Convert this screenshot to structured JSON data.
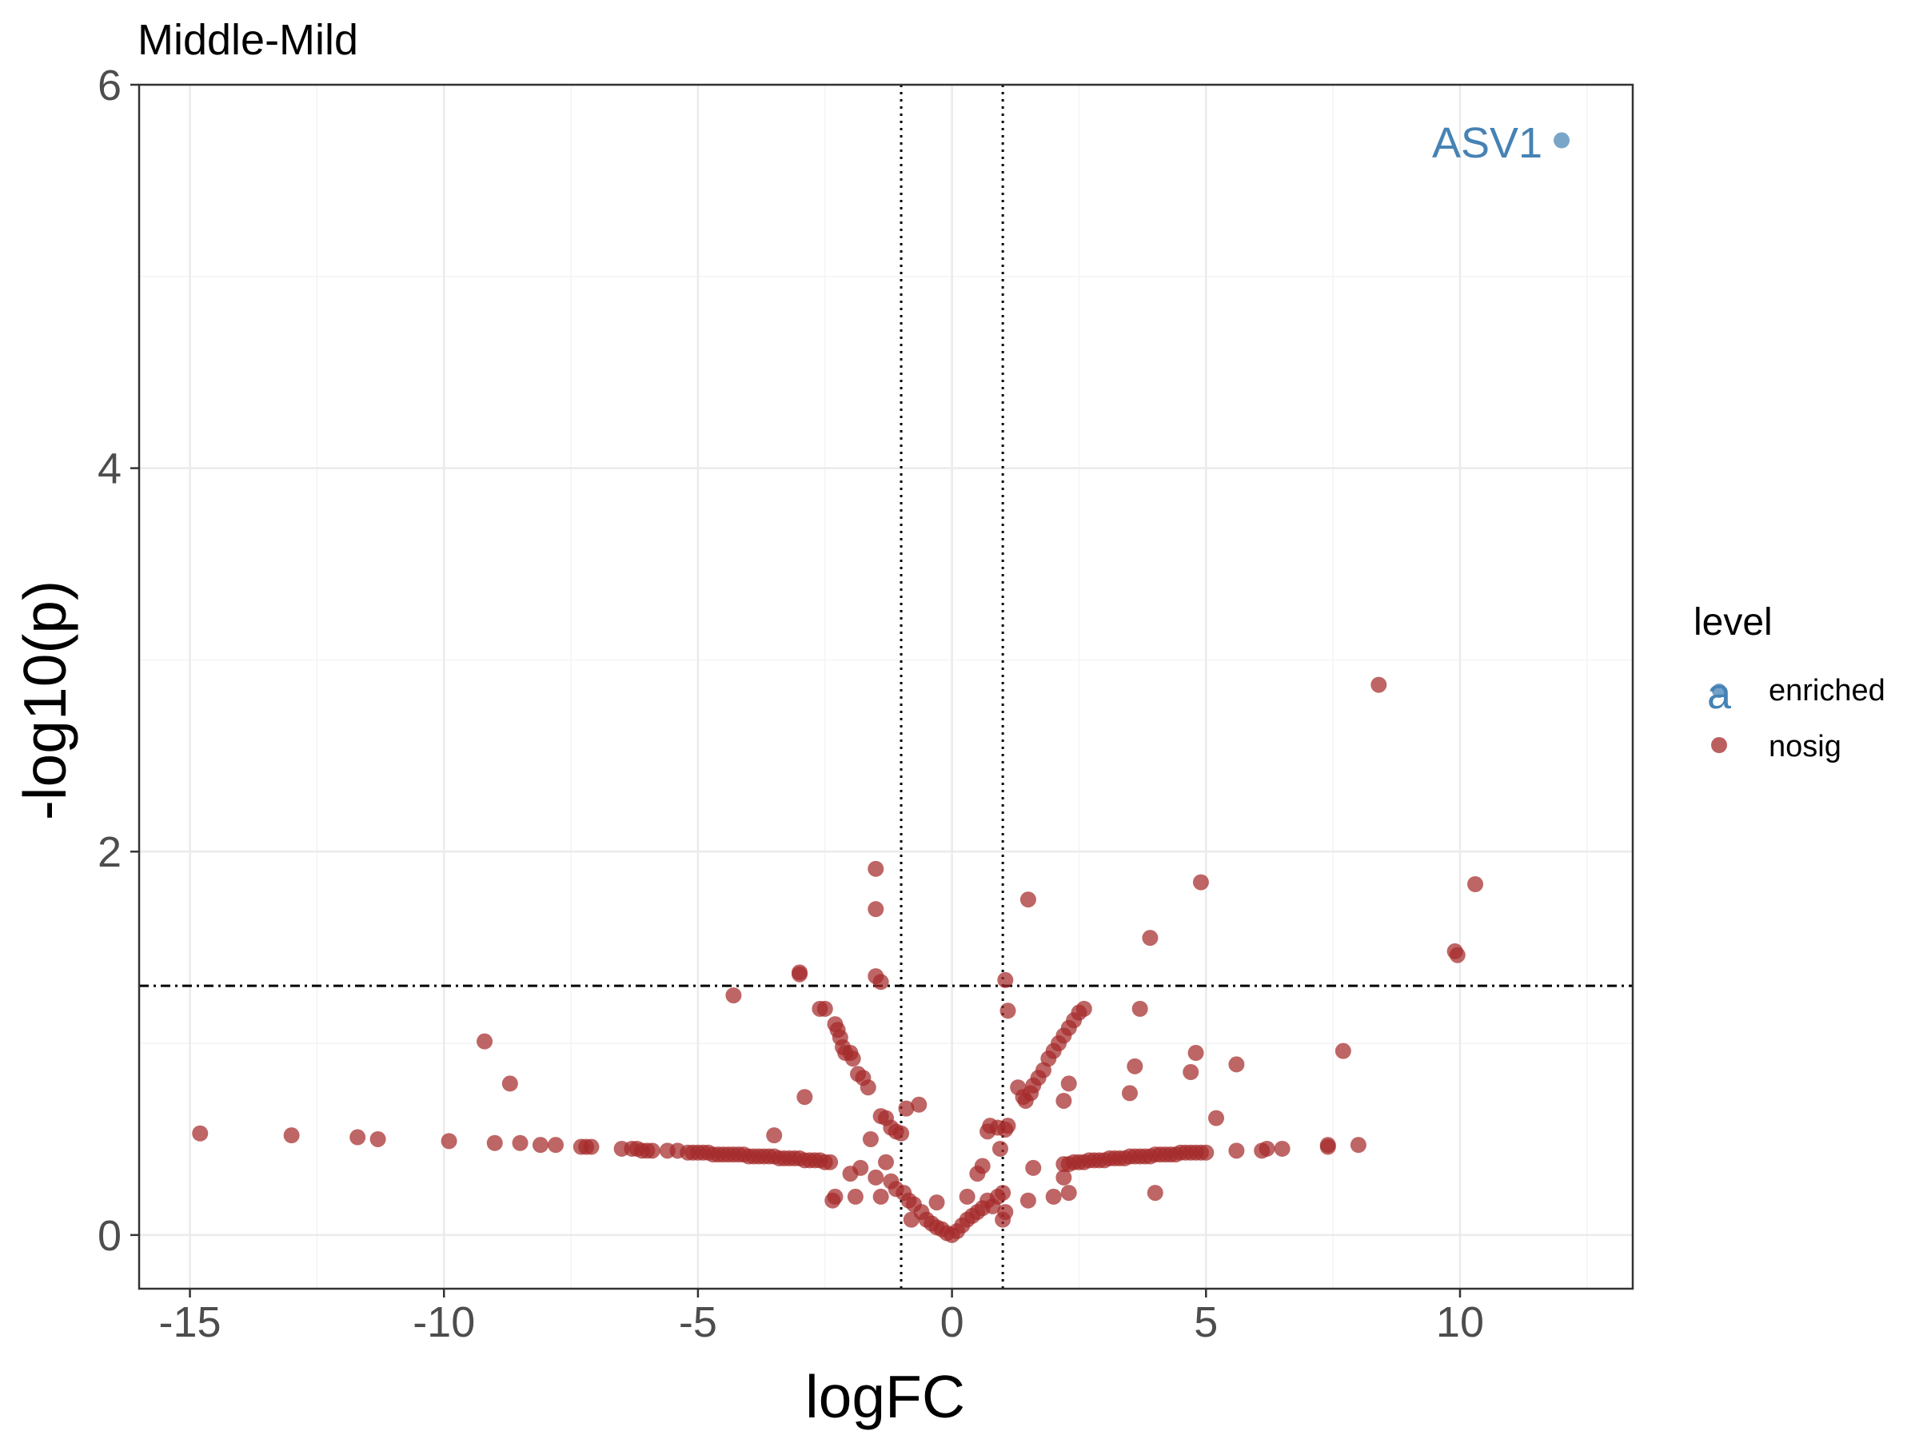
{
  "chart_data": {
    "type": "scatter",
    "title": "Middle-Mild",
    "xlabel": "logFC",
    "ylabel": "-log10(p)",
    "xlim": [
      -16,
      13.4
    ],
    "ylim": [
      -0.28,
      6
    ],
    "x_ticks": [
      -15,
      -10,
      -5,
      0,
      5,
      10
    ],
    "y_ticks": [
      0,
      2,
      4,
      6
    ],
    "grid": true,
    "theme": "bw",
    "reference_lines": {
      "vertical_dotted": [
        -1,
        1
      ],
      "horizontal_dotdash": 1.3
    },
    "legend": {
      "title": "level",
      "position": "right",
      "entries": [
        {
          "label": "enriched",
          "color": "#4682B4",
          "glyph": "a"
        },
        {
          "label": "nosig",
          "color": "#A52A2A"
        }
      ]
    },
    "annotations": [
      {
        "text": "ASV1",
        "x": 12,
        "y": 5.7,
        "color": "#4682B4"
      }
    ],
    "series": [
      {
        "name": "enriched",
        "color": "#4682B4",
        "points": [
          [
            12.0,
            5.71
          ]
        ]
      },
      {
        "name": "nosig",
        "color": "#A52A2A",
        "points": [
          [
            -14.8,
            0.53
          ],
          [
            -13.0,
            0.52
          ],
          [
            -11.7,
            0.51
          ],
          [
            -11.3,
            0.5
          ],
          [
            -9.9,
            0.49
          ],
          [
            -9.2,
            1.01
          ],
          [
            -9.0,
            0.48
          ],
          [
            -8.7,
            0.79
          ],
          [
            -8.5,
            0.48
          ],
          [
            -8.1,
            0.47
          ],
          [
            -7.8,
            0.47
          ],
          [
            -7.3,
            0.46
          ],
          [
            -7.2,
            0.46
          ],
          [
            -7.1,
            0.46
          ],
          [
            -6.5,
            0.45
          ],
          [
            -6.3,
            0.45
          ],
          [
            -6.2,
            0.45
          ],
          [
            -6.1,
            0.44
          ],
          [
            -6.0,
            0.44
          ],
          [
            -5.9,
            0.44
          ],
          [
            -5.6,
            0.44
          ],
          [
            -5.4,
            0.44
          ],
          [
            -5.2,
            0.43
          ],
          [
            -5.1,
            0.43
          ],
          [
            -5.0,
            0.43
          ],
          [
            -4.9,
            0.43
          ],
          [
            -4.8,
            0.43
          ],
          [
            -4.7,
            0.42
          ],
          [
            -4.6,
            0.42
          ],
          [
            -4.5,
            0.42
          ],
          [
            -4.4,
            0.42
          ],
          [
            -4.3,
            1.25
          ],
          [
            -4.3,
            0.42
          ],
          [
            -4.2,
            0.42
          ],
          [
            -4.1,
            0.42
          ],
          [
            -4.0,
            0.41
          ],
          [
            -3.9,
            0.41
          ],
          [
            -3.8,
            0.41
          ],
          [
            -3.7,
            0.41
          ],
          [
            -3.6,
            0.41
          ],
          [
            -3.5,
            0.41
          ],
          [
            -3.4,
            0.4
          ],
          [
            -3.3,
            0.4
          ],
          [
            -3.2,
            0.4
          ],
          [
            -3.1,
            0.4
          ],
          [
            -3.0,
            0.4
          ],
          [
            -2.9,
            0.39
          ],
          [
            -2.8,
            0.39
          ],
          [
            -2.7,
            0.39
          ],
          [
            -2.6,
            0.39
          ],
          [
            -2.5,
            0.38
          ],
          [
            -2.4,
            0.38
          ],
          [
            -3.5,
            0.52
          ],
          [
            -2.9,
            0.72
          ],
          [
            -3.0,
            1.37
          ],
          [
            -3.0,
            1.36
          ],
          [
            -2.6,
            1.18
          ],
          [
            -2.5,
            1.18
          ],
          [
            -2.3,
            1.1
          ],
          [
            -2.25,
            1.07
          ],
          [
            -2.2,
            1.03
          ],
          [
            -2.15,
            0.98
          ],
          [
            -2.1,
            0.95
          ],
          [
            -2.0,
            0.95
          ],
          [
            -1.95,
            0.92
          ],
          [
            -1.85,
            0.84
          ],
          [
            -1.75,
            0.82
          ],
          [
            -1.65,
            0.77
          ],
          [
            -1.4,
            0.62
          ],
          [
            -1.3,
            0.61
          ],
          [
            -1.2,
            0.56
          ],
          [
            -1.1,
            0.54
          ],
          [
            -1.0,
            0.53
          ],
          [
            -1.5,
            1.91
          ],
          [
            -1.5,
            1.7
          ],
          [
            -1.5,
            1.35
          ],
          [
            -1.4,
            1.32
          ],
          [
            -2.3,
            0.2
          ],
          [
            -2.35,
            0.18
          ],
          [
            -2.0,
            0.32
          ],
          [
            -1.9,
            0.2
          ],
          [
            -1.8,
            0.35
          ],
          [
            -1.6,
            0.5
          ],
          [
            -1.5,
            0.3
          ],
          [
            -1.4,
            0.2
          ],
          [
            -1.3,
            0.38
          ],
          [
            -1.2,
            0.28
          ],
          [
            -1.1,
            0.24
          ],
          [
            -0.95,
            0.22
          ],
          [
            -0.85,
            0.18
          ],
          [
            -0.75,
            0.16
          ],
          [
            -0.9,
            0.66
          ],
          [
            -0.65,
            0.68
          ],
          [
            -0.8,
            0.08
          ],
          [
            -0.6,
            0.12
          ],
          [
            -0.5,
            0.08
          ],
          [
            -0.4,
            0.06
          ],
          [
            -0.3,
            0.04
          ],
          [
            -0.2,
            0.03
          ],
          [
            -0.1,
            0.01
          ],
          [
            0.0,
            0.0
          ],
          [
            0.1,
            0.02
          ],
          [
            0.2,
            0.05
          ],
          [
            0.3,
            0.08
          ],
          [
            0.4,
            0.1
          ],
          [
            0.5,
            0.12
          ],
          [
            0.6,
            0.14
          ],
          [
            0.7,
            0.18
          ],
          [
            -0.3,
            0.17
          ],
          [
            0.3,
            0.2
          ],
          [
            0.8,
            0.15
          ],
          [
            0.9,
            0.2
          ],
          [
            1.0,
            0.22
          ],
          [
            1.05,
            0.12
          ],
          [
            1.0,
            0.08
          ],
          [
            0.95,
            0.45
          ],
          [
            0.7,
            0.54
          ],
          [
            0.75,
            0.57
          ],
          [
            0.9,
            0.56
          ],
          [
            1.05,
            0.55
          ],
          [
            1.1,
            0.57
          ],
          [
            0.6,
            0.36
          ],
          [
            0.5,
            0.32
          ],
          [
            1.05,
            1.33
          ],
          [
            1.1,
            1.17
          ],
          [
            1.3,
            0.77
          ],
          [
            1.4,
            0.72
          ],
          [
            1.45,
            0.7
          ],
          [
            1.55,
            0.74
          ],
          [
            1.6,
            0.78
          ],
          [
            1.7,
            0.82
          ],
          [
            1.8,
            0.86
          ],
          [
            1.9,
            0.92
          ],
          [
            2.0,
            0.96
          ],
          [
            2.1,
            1.0
          ],
          [
            2.2,
            1.04
          ],
          [
            2.3,
            1.08
          ],
          [
            2.4,
            1.12
          ],
          [
            2.5,
            1.16
          ],
          [
            2.6,
            1.18
          ],
          [
            1.5,
            1.75
          ],
          [
            2.3,
            0.79
          ],
          [
            2.2,
            0.7
          ],
          [
            1.6,
            0.35
          ],
          [
            1.5,
            0.18
          ],
          [
            2.2,
            0.3
          ],
          [
            2.3,
            0.22
          ],
          [
            2.0,
            0.2
          ],
          [
            2.2,
            0.37
          ],
          [
            2.3,
            0.37
          ],
          [
            2.4,
            0.38
          ],
          [
            2.5,
            0.38
          ],
          [
            2.6,
            0.38
          ],
          [
            2.7,
            0.39
          ],
          [
            2.8,
            0.39
          ],
          [
            2.9,
            0.39
          ],
          [
            3.0,
            0.39
          ],
          [
            3.1,
            0.4
          ],
          [
            3.2,
            0.4
          ],
          [
            3.3,
            0.4
          ],
          [
            3.4,
            0.4
          ],
          [
            3.5,
            0.41
          ],
          [
            3.6,
            0.41
          ],
          [
            3.7,
            0.41
          ],
          [
            3.8,
            0.41
          ],
          [
            3.9,
            0.41
          ],
          [
            4.0,
            0.42
          ],
          [
            4.1,
            0.42
          ],
          [
            4.2,
            0.42
          ],
          [
            4.3,
            0.42
          ],
          [
            4.4,
            0.42
          ],
          [
            4.5,
            0.43
          ],
          [
            4.6,
            0.43
          ],
          [
            4.7,
            0.43
          ],
          [
            4.8,
            0.43
          ],
          [
            4.9,
            0.43
          ],
          [
            5.0,
            0.43
          ],
          [
            3.5,
            0.74
          ],
          [
            3.6,
            0.88
          ],
          [
            3.7,
            1.18
          ],
          [
            3.9,
            1.55
          ],
          [
            4.0,
            0.22
          ],
          [
            4.7,
            0.85
          ],
          [
            4.8,
            0.95
          ],
          [
            4.9,
            1.84
          ],
          [
            5.2,
            0.61
          ],
          [
            5.6,
            0.89
          ],
          [
            5.6,
            0.44
          ],
          [
            6.1,
            0.44
          ],
          [
            6.2,
            0.45
          ],
          [
            6.5,
            0.45
          ],
          [
            7.4,
            0.46
          ],
          [
            7.4,
            0.47
          ],
          [
            7.7,
            0.96
          ],
          [
            8.0,
            0.47
          ],
          [
            8.4,
            2.87
          ],
          [
            9.9,
            1.48
          ],
          [
            9.95,
            1.46
          ],
          [
            10.3,
            1.83
          ]
        ]
      }
    ]
  }
}
